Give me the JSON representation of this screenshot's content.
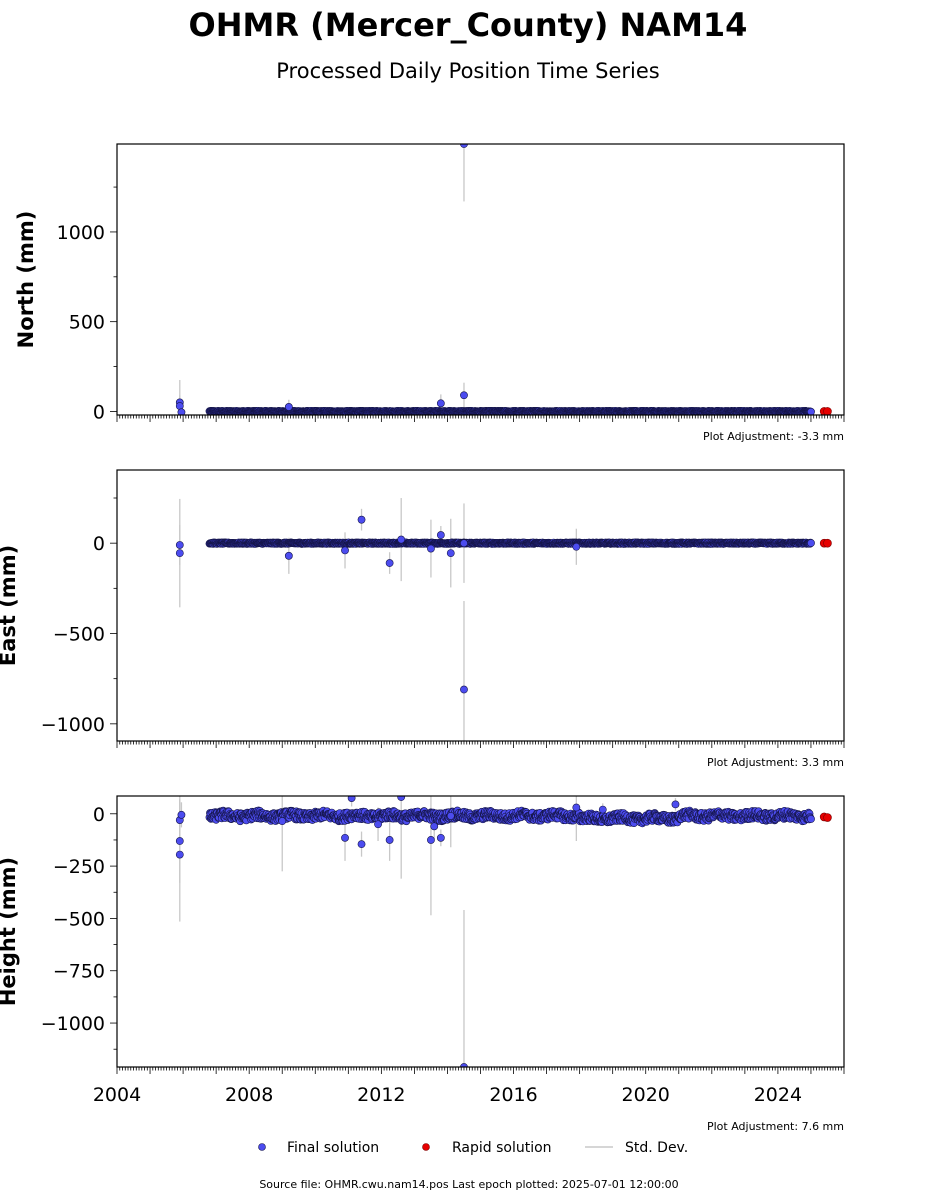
{
  "figure": {
    "title": "OHMR (Mercer_County) NAM14",
    "subtitle": "Processed Daily Position Time Series",
    "footer": "Source file: OHMR.cwu.nam14.pos  Last epoch plotted: 2025-07-01 12:00:00"
  },
  "legend": {
    "final_label": "Final solution",
    "rapid_label": "Rapid solution",
    "std_label": "Std. Dev."
  },
  "colors": {
    "final": "#4c4cef",
    "final_edge": "#15154a",
    "rapid": "#e60000",
    "std": "#c8c8c8"
  },
  "chart_data": [
    {
      "type": "scatter",
      "panel": "north",
      "ylabel": "North (mm)",
      "adjustment": "Plot Adjustment: -3.3 mm",
      "xlim": [
        2004.0,
        2026.0
      ],
      "ylim": [
        -20,
        1490
      ],
      "yticks": [
        0,
        500,
        1000
      ],
      "ytick_labels": [
        "0",
        "500",
        "1000"
      ],
      "continuous_band": {
        "from": 2006.8,
        "to": 2025.0,
        "center": 0,
        "spread": 3
      },
      "outliers": [
        {
          "x": 2005.9,
          "y": 50,
          "err": 125
        },
        {
          "x": 2005.9,
          "y": 30,
          "err": 60
        },
        {
          "x": 2005.95,
          "y": -5,
          "err": 40
        },
        {
          "x": 2009.2,
          "y": 25,
          "err": 40
        },
        {
          "x": 2013.8,
          "y": 45,
          "err": 50
        },
        {
          "x": 2014.5,
          "y": 90,
          "err": 70
        },
        {
          "x": 2014.5,
          "y": 1490,
          "err": 320
        }
      ],
      "rapid": [
        {
          "x": 2025.4,
          "y": 0
        },
        {
          "x": 2025.5,
          "y": 0
        }
      ]
    },
    {
      "type": "scatter",
      "panel": "east",
      "ylabel": "East (mm)",
      "adjustment": "Plot Adjustment: 3.3 mm",
      "xlim": [
        2004.0,
        2026.0
      ],
      "ylim": [
        -1095,
        405
      ],
      "yticks": [
        -1000,
        -500,
        0
      ],
      "ytick_labels": [
        "−1000",
        "−500",
        "0"
      ],
      "continuous_band": {
        "from": 2006.8,
        "to": 2025.0,
        "center": 0,
        "spread": 4
      },
      "outliers": [
        {
          "x": 2005.9,
          "y": -55,
          "err": 300
        },
        {
          "x": 2005.9,
          "y": -10,
          "err": 110
        },
        {
          "x": 2009.2,
          "y": -70,
          "err": 100
        },
        {
          "x": 2010.9,
          "y": -40,
          "err": 100
        },
        {
          "x": 2011.4,
          "y": 130,
          "err": 60
        },
        {
          "x": 2012.25,
          "y": -110,
          "err": 60
        },
        {
          "x": 2012.6,
          "y": 20,
          "err": 230
        },
        {
          "x": 2013.5,
          "y": -30,
          "err": 160
        },
        {
          "x": 2013.8,
          "y": 45,
          "err": 50
        },
        {
          "x": 2014.1,
          "y": -55,
          "err": 190
        },
        {
          "x": 2014.5,
          "y": -810,
          "err": 490
        },
        {
          "x": 2014.5,
          "y": 0,
          "err": 220
        },
        {
          "x": 2017.9,
          "y": -20,
          "err": 100
        }
      ],
      "rapid": [
        {
          "x": 2025.4,
          "y": 0
        },
        {
          "x": 2025.5,
          "y": 0
        }
      ]
    },
    {
      "type": "scatter",
      "panel": "height",
      "ylabel": "Height (mm)",
      "adjustment": "Plot Adjustment: 7.6 mm",
      "xlim": [
        2004.0,
        2026.0
      ],
      "ylim": [
        -1210,
        85
      ],
      "yticks": [
        -1000,
        -750,
        -500,
        -250,
        0
      ],
      "ytick_labels": [
        "−1000",
        "−750",
        "−500",
        "−250",
        "0"
      ],
      "xticks": [
        2004,
        2008,
        2012,
        2016,
        2020,
        2024
      ],
      "xtick_labels": [
        "2004",
        "2008",
        "2012",
        "2016",
        "2020",
        "2024"
      ],
      "continuous_band": {
        "from": 2006.8,
        "to": 2025.0,
        "center": -10,
        "spread": 20
      },
      "outliers": [
        {
          "x": 2005.9,
          "y": -195,
          "err": 320
        },
        {
          "x": 2005.9,
          "y": -130,
          "err": 200
        },
        {
          "x": 2005.9,
          "y": -30,
          "err": 100
        },
        {
          "x": 2005.95,
          "y": -5,
          "err": 60
        },
        {
          "x": 2009.0,
          "y": -35,
          "err": 240
        },
        {
          "x": 2010.9,
          "y": -115,
          "err": 110
        },
        {
          "x": 2011.1,
          "y": 75,
          "err": 40
        },
        {
          "x": 2011.4,
          "y": -145,
          "err": 60
        },
        {
          "x": 2011.9,
          "y": -50,
          "err": 80
        },
        {
          "x": 2012.25,
          "y": -125,
          "err": 100
        },
        {
          "x": 2012.6,
          "y": 80,
          "err": 390
        },
        {
          "x": 2013.5,
          "y": -125,
          "err": 360
        },
        {
          "x": 2013.6,
          "y": -60,
          "err": 60
        },
        {
          "x": 2013.8,
          "y": -115,
          "err": 40
        },
        {
          "x": 2014.1,
          "y": -10,
          "err": 150
        },
        {
          "x": 2014.5,
          "y": -1210,
          "err": 750
        },
        {
          "x": 2017.9,
          "y": 30,
          "err": 160
        },
        {
          "x": 2018.7,
          "y": 20,
          "err": 30
        },
        {
          "x": 2020.9,
          "y": 45,
          "err": 30
        }
      ],
      "rapid": [
        {
          "x": 2025.4,
          "y": -15
        },
        {
          "x": 2025.5,
          "y": -18
        }
      ]
    }
  ]
}
